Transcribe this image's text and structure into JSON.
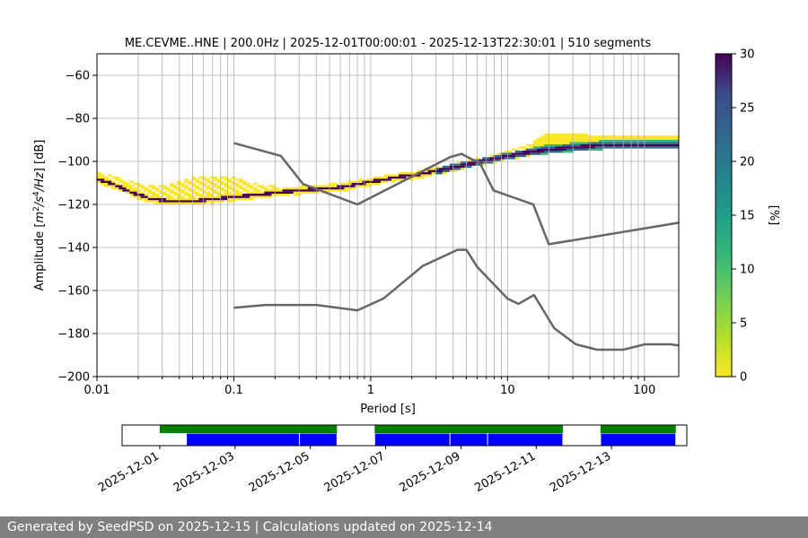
{
  "footer_text": "Generated by SeedPSD on 2025-12-15 | Calculations updated on 2025-12-14",
  "chart_data": {
    "type": "heatmap",
    "title": "ME.CEVME..HNE | 200.0Hz | 2025-12-01T00:00:01 - 2025-12-13T22:30:01 | 510 segments",
    "xlabel": "Period [s]",
    "ylabel_parts": [
      "Amplitude [",
      "m",
      "2",
      "/",
      "s",
      "4",
      "/",
      "Hz",
      "] [dB]"
    ],
    "x_scale": "log",
    "xlim": [
      0.01,
      178
    ],
    "ylim": [
      -200,
      -50
    ],
    "x_ticks": [
      {
        "value": 0.01,
        "label": "0.01"
      },
      {
        "value": 0.1,
        "label": "0.1"
      },
      {
        "value": 1,
        "label": "1"
      },
      {
        "value": 10,
        "label": "10"
      },
      {
        "value": 100,
        "label": "100"
      }
    ],
    "y_ticks": [
      -60,
      -80,
      -100,
      -120,
      -140,
      -160,
      -180,
      -200
    ],
    "grid": true,
    "colormap": "viridis_r",
    "colors": {
      "low": "#fde725",
      "mid1": "#35b779",
      "mid2": "#31688e",
      "high": "#440154",
      "model_line": "#666666"
    },
    "colorbar": {
      "label": "[%]",
      "min": 0,
      "max": 30,
      "ticks": [
        0,
        5,
        10,
        15,
        20,
        25,
        30
      ]
    },
    "psd_mode": {
      "period": [
        0.01,
        0.013,
        0.018,
        0.025,
        0.035,
        0.05,
        0.07,
        0.1,
        0.15,
        0.2,
        0.3,
        0.5,
        0.7,
        1,
        1.5,
        2,
        3,
        5,
        7,
        10,
        15,
        20,
        30,
        50,
        100,
        178
      ],
      "db": [
        -109,
        -111,
        -115,
        -118,
        -119,
        -119,
        -118,
        -117,
        -116,
        -115,
        -114,
        -113,
        -112,
        -110,
        -108,
        -107,
        -105,
        -102,
        -100,
        -98,
        -96,
        -95,
        -94,
        -93,
        -93,
        -93
      ]
    },
    "psd_upper": {
      "period": [
        0.01,
        0.013,
        0.018,
        0.025,
        0.035,
        0.05,
        0.07,
        0.1,
        0.15,
        0.2,
        0.3,
        0.5,
        0.7,
        1,
        1.5,
        2,
        3,
        5,
        7,
        10,
        15,
        20,
        30,
        50,
        100,
        178
      ],
      "db": [
        -106,
        -108,
        -111,
        -113,
        -112,
        -109,
        -108,
        -109,
        -112,
        -113,
        -113,
        -112,
        -111,
        -109,
        -107,
        -106,
        -104,
        -101,
        -99,
        -96,
        -93,
        -88,
        -88,
        -90,
        -89,
        -89
      ]
    },
    "nhnm": {
      "period": [
        0.1,
        0.22,
        0.32,
        0.8,
        3.8,
        4.6,
        6.3,
        7.9,
        15.4,
        20,
        178
      ],
      "db": [
        -91.5,
        -97.4,
        -110.5,
        -120,
        -98,
        -96.5,
        -101,
        -113.5,
        -120,
        -138.5,
        -128.5
      ]
    },
    "nlnm": {
      "period": [
        0.1,
        0.17,
        0.4,
        0.8,
        1.24,
        2.4,
        4.3,
        5,
        6,
        10,
        12,
        15.6,
        21.9,
        31.6,
        45,
        70,
        101,
        154,
        178
      ],
      "db": [
        -168,
        -166.7,
        -166.7,
        -169.2,
        -163.7,
        -148.6,
        -141.1,
        -141.1,
        -149,
        -163.8,
        -166.2,
        -162.1,
        -177.5,
        -185,
        -187.5,
        -187.5,
        -185,
        -185,
        -185.5
      ]
    },
    "coverage": {
      "date_ticks": [
        "2025-12-01",
        "2025-12-03",
        "2025-12-05",
        "2025-12-07",
        "2025-12-09",
        "2025-12-11",
        "2025-12-13"
      ],
      "axis_range": [
        "2025-11-30",
        "2025-12-15"
      ],
      "colors": {
        "data": "#0000ff",
        "psd": "#008000"
      },
      "data_segments": [
        {
          "start": "2025-12-01T17:00",
          "end": "2025-12-04T17:00"
        },
        {
          "start": "2025-12-04T17:00",
          "end": "2025-12-05T17:00"
        },
        {
          "start": "2025-12-06T17:00",
          "end": "2025-12-08T17:00"
        },
        {
          "start": "2025-12-08T17:00",
          "end": "2025-12-09T17:00"
        },
        {
          "start": "2025-12-09T17:00",
          "end": "2025-12-11T17:00"
        },
        {
          "start": "2025-12-12T17:00",
          "end": "2025-12-14T17:00"
        }
      ],
      "psd_segments": [
        {
          "start": "2025-12-01T00:00",
          "end": "2025-12-05T17:00"
        },
        {
          "start": "2025-12-06T17:00",
          "end": "2025-12-11T17:00"
        },
        {
          "start": "2025-12-12T17:00",
          "end": "2025-12-14T17:00"
        }
      ]
    }
  }
}
